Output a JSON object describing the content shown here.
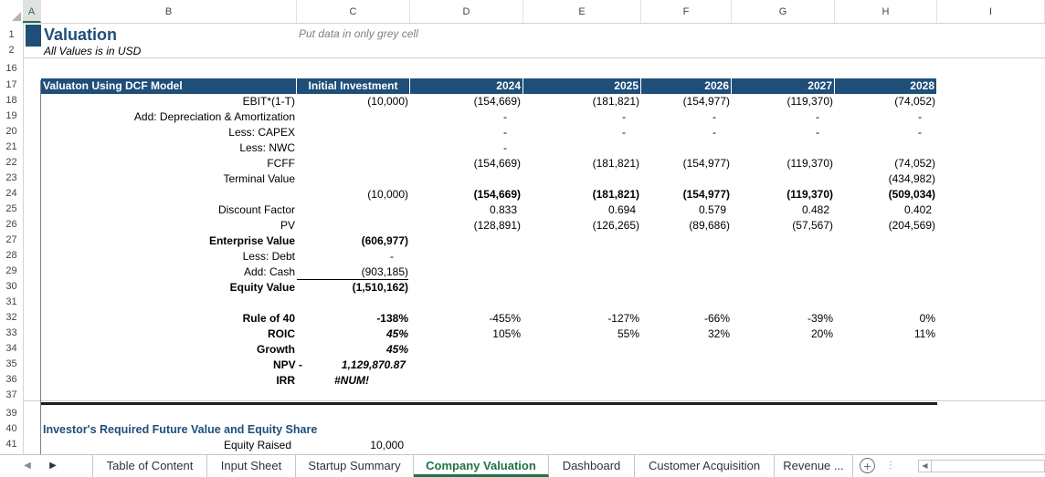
{
  "columns": [
    "A",
    "B",
    "C",
    "D",
    "E",
    "F",
    "G",
    "H",
    "I"
  ],
  "rows": [
    "1",
    "2",
    "16",
    "17",
    "18",
    "19",
    "20",
    "21",
    "22",
    "23",
    "24",
    "25",
    "26",
    "27",
    "28",
    "29",
    "30",
    "31",
    "32",
    "33",
    "34",
    "35",
    "36",
    "37",
    "39",
    "40",
    "41"
  ],
  "title": "Valuation",
  "note": "Put data in only grey cell",
  "subtitle": "All Values is in USD",
  "table_header": {
    "label": "Valuaton Using DCF Model",
    "initial": "Initial Investment",
    "years": [
      "2024",
      "2025",
      "2026",
      "2027",
      "2028"
    ]
  },
  "lines": [
    {
      "label": "EBIT*(1-T)",
      "initial": "(10,000)",
      "vals": [
        "(154,669)",
        "(181,821)",
        "(154,977)",
        "(119,370)",
        "(74,052)"
      ]
    },
    {
      "label": "Add: Depreciation & Amortization",
      "initial": "",
      "vals": [
        "-",
        "-",
        "-",
        "-",
        "-"
      ]
    },
    {
      "label": "Less: CAPEX",
      "initial": "",
      "vals": [
        "-",
        "-",
        "-",
        "-",
        "-"
      ]
    },
    {
      "label": "Less: NWC",
      "initial": "",
      "vals": [
        "-",
        "",
        "",
        "",
        ""
      ]
    },
    {
      "label": "FCFF",
      "initial": "",
      "vals": [
        "(154,669)",
        "(181,821)",
        "(154,977)",
        "(119,370)",
        "(74,052)"
      ]
    },
    {
      "label": "Terminal Value",
      "initial": "",
      "vals": [
        "",
        "",
        "",
        "",
        "(434,982)"
      ]
    },
    {
      "label": "",
      "initial": "(10,000)",
      "vals": [
        "(154,669)",
        "(181,821)",
        "(154,977)",
        "(119,370)",
        "(509,034)"
      ]
    },
    {
      "label": "Discount Factor",
      "initial": "",
      "vals": [
        "0.833",
        "0.694",
        "0.579",
        "0.482",
        "0.402"
      ]
    },
    {
      "label": "PV",
      "initial": "",
      "vals": [
        "(128,891)",
        "(126,265)",
        "(89,686)",
        "(57,567)",
        "(204,569)"
      ]
    }
  ],
  "summary": [
    {
      "label": "Enterprise Value",
      "value": "(606,977)"
    },
    {
      "label": "Less: Debt",
      "value": "-"
    },
    {
      "label": "Add: Cash",
      "value": "(903,185)"
    },
    {
      "label": "Equity Value",
      "value": "(1,510,162)"
    }
  ],
  "metrics": [
    {
      "label": "Rule of 40",
      "initial": "-138%",
      "vals": [
        "-455%",
        "-127%",
        "-66%",
        "-39%",
        "0%"
      ]
    },
    {
      "label": "ROIC",
      "initial": "45%",
      "vals": [
        "105%",
        "55%",
        "32%",
        "20%",
        "11%"
      ]
    },
    {
      "label": "Growth",
      "initial": "45%",
      "vals": [
        "",
        "",
        "",
        "",
        ""
      ]
    }
  ],
  "npv": {
    "label": "NPV -",
    "value": "1,129,870.87"
  },
  "irr": {
    "label": "IRR",
    "value": "#NUM!"
  },
  "investor": {
    "heading": "Investor's Required Future Value and Equity Share",
    "equity_label": "Equity Raised",
    "equity_value": "10,000"
  },
  "tabs": [
    "Table of Content",
    "Input Sheet",
    "Startup Summary",
    "Company Valuation",
    "Dashboard",
    "Customer Acquisition",
    "Revenue ..."
  ],
  "active_tab": "Company Valuation",
  "colors": {
    "header_bg": "#1f4e79",
    "accent": "#217346",
    "subheading": "#1f4e79"
  }
}
